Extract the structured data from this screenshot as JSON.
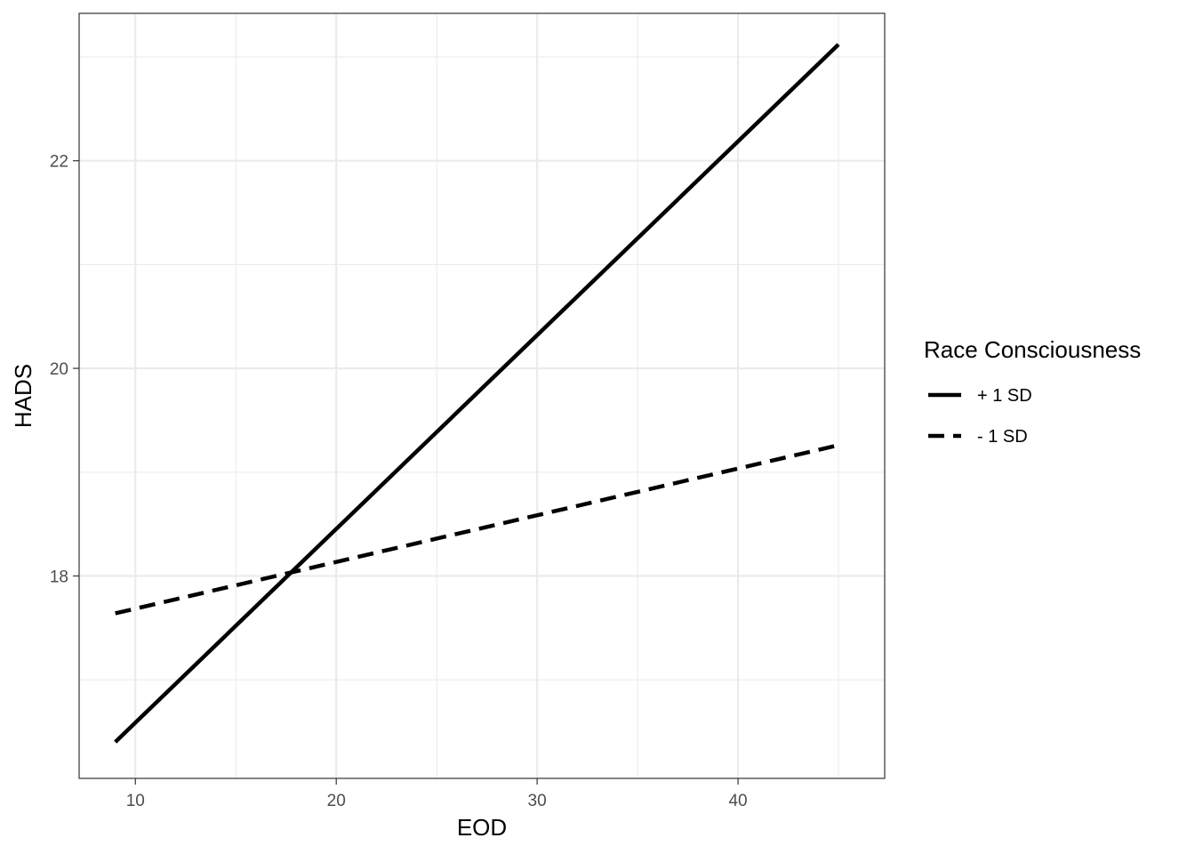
{
  "chart_data": {
    "type": "line",
    "title": "",
    "xlabel": "EOD",
    "ylabel": "HADS",
    "xlim": [
      7.2,
      47.3
    ],
    "ylim": [
      16.05,
      23.42
    ],
    "x_ticks": [
      10,
      20,
      30,
      40
    ],
    "y_ticks": [
      18,
      20,
      22
    ],
    "grid": true,
    "legend": {
      "title": "Race Consciousness",
      "placement": "right"
    },
    "series": [
      {
        "name": "+ 1 SD",
        "line_style": "solid",
        "x": [
          9,
          45
        ],
        "y": [
          16.4,
          23.12
        ]
      },
      {
        "name": "- 1 SD",
        "line_style": "dashed",
        "x": [
          9,
          45
        ],
        "y": [
          17.64,
          19.26
        ]
      }
    ],
    "colors": {
      "line": "#000000",
      "grid": "#ebebeb",
      "border": "#333333",
      "tick_text": "#4d4d4d"
    }
  }
}
